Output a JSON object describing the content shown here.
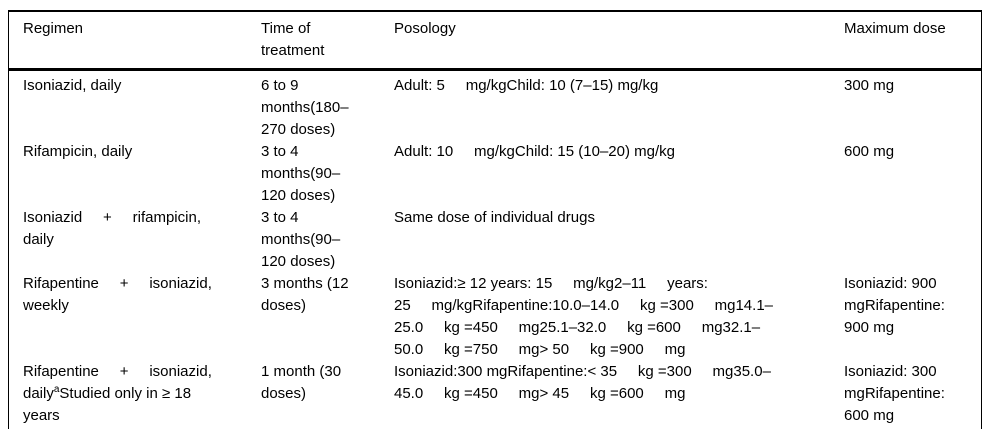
{
  "table": {
    "columns": [
      {
        "key": "regimen",
        "label": "Regimen"
      },
      {
        "key": "time",
        "label": "Time of\ntreatment"
      },
      {
        "key": "posology",
        "label": "Posology"
      },
      {
        "key": "max_dose",
        "label": "Maximum dose"
      }
    ],
    "rows": [
      {
        "regimen": "Isoniazid, daily",
        "time": "6 to 9\nmonths(180–\n270 doses)",
        "posology": "Adult: 5     mg/kgChild: 10 (7–15) mg/kg",
        "max_dose": "300 mg"
      },
      {
        "regimen": "Rifampicin, daily",
        "time": "3 to 4\nmonths(90–\n120 doses)",
        "posology": "Adult: 10     mg/kgChild: 15 (10–20) mg/kg",
        "max_dose": "600 mg"
      },
      {
        "regimen": "Isoniazid     +     rifampicin,\ndaily",
        "time": "3 to 4\nmonths(90–\n120 doses)",
        "posology": "Same dose of individual drugs",
        "max_dose": ""
      },
      {
        "regimen": "Rifapentine     +     isoniazid,\nweekly",
        "time": "3 months (12\ndoses)",
        "posology": "Isoniazid:≥ 12 years: 15     mg/kg2–11     years:\n25     mg/kgRifapentine:10.0–14.0     kg =300     mg14.1–\n25.0     kg =450     mg25.1–32.0     kg =600     mg32.1–\n50.0     kg =750     mg> 50     kg =900     mg",
        "max_dose": "Isoniazid: 900\nmgRifapentine:\n900 mg"
      },
      {
        "regimen_before": "Rifapentine     +     isoniazid,\ndaily",
        "regimen_sup": "a",
        "regimen_after": "Studied only in ≥ 18\nyears",
        "time": "1 month (30\ndoses)",
        "posology": "Isoniazid:300 mgRifapentine:< 35     kg =300     mg35.0–\n45.0     kg =450     mg> 45     kg =600     mg",
        "max_dose": "Isoniazid: 300\nmgRifapentine:\n600 mg"
      }
    ]
  }
}
